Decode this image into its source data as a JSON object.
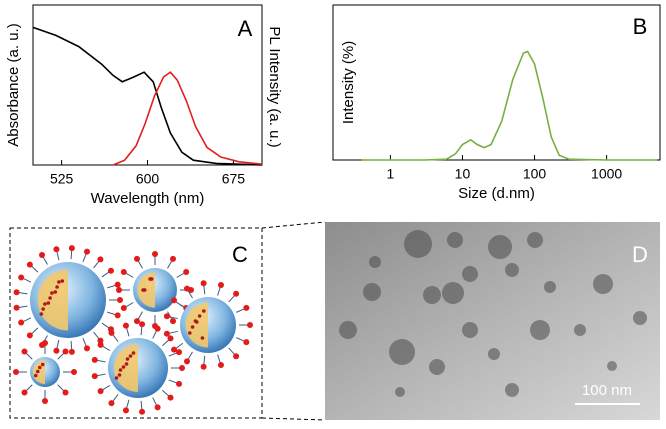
{
  "chart_data": [
    {
      "type": "line",
      "panel_label": "A",
      "x_label": "Wavelength (nm)",
      "y_label": "Absorbance (a. u.)",
      "y2_label": "PL Intensity (a. u.)",
      "xlim": [
        500,
        700
      ],
      "xticks": [
        525,
        600,
        675
      ],
      "ylim": [
        0,
        1
      ],
      "y2lim": [
        0,
        1
      ],
      "series": [
        {
          "color": "#000000",
          "x": [
            500,
            520,
            540,
            560,
            570,
            578,
            588,
            597,
            605,
            612,
            620,
            630,
            640,
            660,
            680,
            700
          ],
          "values": [
            0.86,
            0.81,
            0.74,
            0.63,
            0.56,
            0.52,
            0.55,
            0.58,
            0.52,
            0.36,
            0.2,
            0.08,
            0.03,
            0.01,
            0.005,
            0
          ]
        },
        {
          "color": "#e02020",
          "axis": "y2",
          "x": [
            570,
            580,
            590,
            598,
            606,
            614,
            620,
            626,
            634,
            642,
            652,
            664,
            680,
            700
          ],
          "values": [
            0,
            0.03,
            0.12,
            0.26,
            0.43,
            0.55,
            0.58,
            0.53,
            0.4,
            0.24,
            0.11,
            0.05,
            0.02,
            0.005
          ]
        }
      ]
    },
    {
      "type": "line",
      "panel_label": "B",
      "x_label": "Size (d.nm)",
      "y_label": "Intensity (%)",
      "log_x": true,
      "xlim": [
        0.16,
        5500
      ],
      "xticks": [
        1,
        10,
        100,
        1000
      ],
      "ylim": [
        0,
        1
      ],
      "series": [
        {
          "color": "#76b043",
          "x": [
            0.4,
            1,
            3,
            6,
            8,
            10,
            13,
            16,
            20,
            25,
            35,
            50,
            70,
            80,
            100,
            130,
            170,
            220,
            300,
            1000,
            5000
          ],
          "values": [
            0,
            0,
            0,
            0.005,
            0.04,
            0.1,
            0.13,
            0.1,
            0.08,
            0.1,
            0.25,
            0.52,
            0.69,
            0.7,
            0.62,
            0.4,
            0.15,
            0.03,
            0.005,
            0,
            0
          ]
        }
      ]
    }
  ],
  "panel_c": {
    "label": "C"
  },
  "panel_d": {
    "label": "D",
    "scale_bar": "100 nm"
  }
}
